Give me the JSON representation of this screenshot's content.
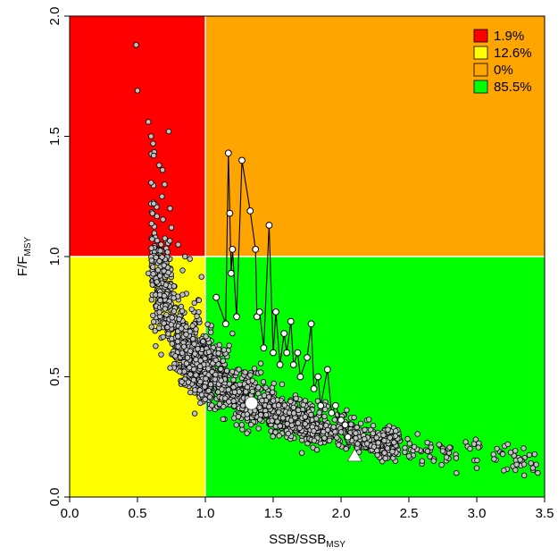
{
  "chart_data": {
    "type": "scatter",
    "title": "",
    "xlabel": {
      "main": "SSB/SSB",
      "sub": "MSY"
    },
    "ylabel": {
      "main": "F/F",
      "sub": "MSY"
    },
    "xlim": [
      0,
      3.5
    ],
    "ylim": [
      0,
      2.0
    ],
    "xticks": [
      "0.0",
      "0.5",
      "1.0",
      "1.5",
      "2.0",
      "2.5",
      "3.0",
      "3.5"
    ],
    "yticks": [
      "0.0",
      "0.5",
      "1.0",
      "1.5",
      "2.0"
    ],
    "reference_lines": {
      "x": 1.0,
      "y": 1.0
    },
    "quadrants": [
      {
        "name": "upper-left",
        "x": [
          0,
          1
        ],
        "y": [
          1,
          2
        ],
        "color": "#ff0000"
      },
      {
        "name": "upper-right",
        "x": [
          1,
          3.5
        ],
        "y": [
          1,
          2
        ],
        "color": "#ffa500"
      },
      {
        "name": "lower-left",
        "x": [
          0,
          1
        ],
        "y": [
          0,
          1
        ],
        "color": "#ffff00"
      },
      {
        "name": "lower-right",
        "x": [
          1,
          3.5
        ],
        "y": [
          0,
          1
        ],
        "color": "#00ff00"
      }
    ],
    "legend": {
      "placement": "top-right",
      "entries": [
        {
          "label": "1.9%",
          "color": "#ff0000"
        },
        {
          "label": "12.6%",
          "color": "#ffff00"
        },
        {
          "label": "0%",
          "color": "#ffa500"
        },
        {
          "label": "85.5%",
          "color": "#00ff00"
        }
      ]
    },
    "series": [
      {
        "kind": "kobe-cloud",
        "marker_color": "#c0c0c0",
        "n_points": 2000,
        "shape": "F ≈ 0.53 / SSB with spread",
        "points": [
          [
            0.49,
            1.88
          ],
          [
            0.5,
            1.69
          ],
          [
            0.58,
            1.56
          ],
          [
            0.6,
            1.5
          ],
          [
            0.62,
            1.42
          ],
          [
            0.66,
            1.38
          ],
          [
            0.7,
            1.3
          ],
          [
            0.73,
            1.52
          ],
          [
            0.68,
            1.25
          ],
          [
            0.74,
            1.2
          ],
          [
            0.58,
            0.93
          ],
          [
            0.62,
            1.22
          ],
          [
            0.75,
            1.12
          ],
          [
            0.8,
            1.05
          ],
          [
            0.85,
            1.0
          ],
          [
            1.2,
            0.68
          ],
          [
            1.5,
            0.4
          ],
          [
            2.0,
            0.27
          ],
          [
            2.5,
            0.17
          ],
          [
            3.0,
            0.12
          ],
          [
            3.2,
            0.11
          ],
          [
            3.45,
            0.1
          ],
          [
            3.35,
            0.09
          ],
          [
            2.85,
            0.1
          ]
        ]
      },
      {
        "kind": "trajectory",
        "marker_color": "#ffffff",
        "points": [
          [
            1.08,
            0.83
          ],
          [
            1.15,
            0.72
          ],
          [
            1.17,
            1.43
          ],
          [
            1.18,
            1.18
          ],
          [
            1.19,
            0.93
          ],
          [
            1.2,
            1.03
          ],
          [
            1.23,
            0.75
          ],
          [
            1.27,
            1.4
          ],
          [
            1.33,
            1.19
          ],
          [
            1.37,
            1.03
          ],
          [
            1.38,
            0.75
          ],
          [
            1.4,
            0.77
          ],
          [
            1.43,
            0.62
          ],
          [
            1.47,
            1.13
          ],
          [
            1.5,
            0.6
          ],
          [
            1.52,
            0.77
          ],
          [
            1.55,
            0.55
          ],
          [
            1.58,
            0.68
          ],
          [
            1.6,
            0.6
          ],
          [
            1.63,
            0.73
          ],
          [
            1.65,
            0.55
          ],
          [
            1.68,
            0.6
          ],
          [
            1.7,
            0.5
          ],
          [
            1.75,
            0.58
          ],
          [
            1.78,
            0.72
          ],
          [
            1.8,
            0.45
          ],
          [
            1.83,
            0.5
          ],
          [
            1.85,
            0.38
          ],
          [
            1.9,
            0.53
          ],
          [
            1.93,
            0.35
          ],
          [
            1.96,
            0.38
          ],
          [
            2.0,
            0.32
          ],
          [
            2.03,
            0.3
          ],
          [
            2.05,
            0.25
          ]
        ]
      }
    ],
    "markers": [
      {
        "shape": "circle",
        "x": 1.34,
        "y": 0.39,
        "color": "#ffffff"
      },
      {
        "shape": "triangle",
        "x": 2.1,
        "y": 0.17,
        "color": "#ffffff"
      }
    ]
  }
}
